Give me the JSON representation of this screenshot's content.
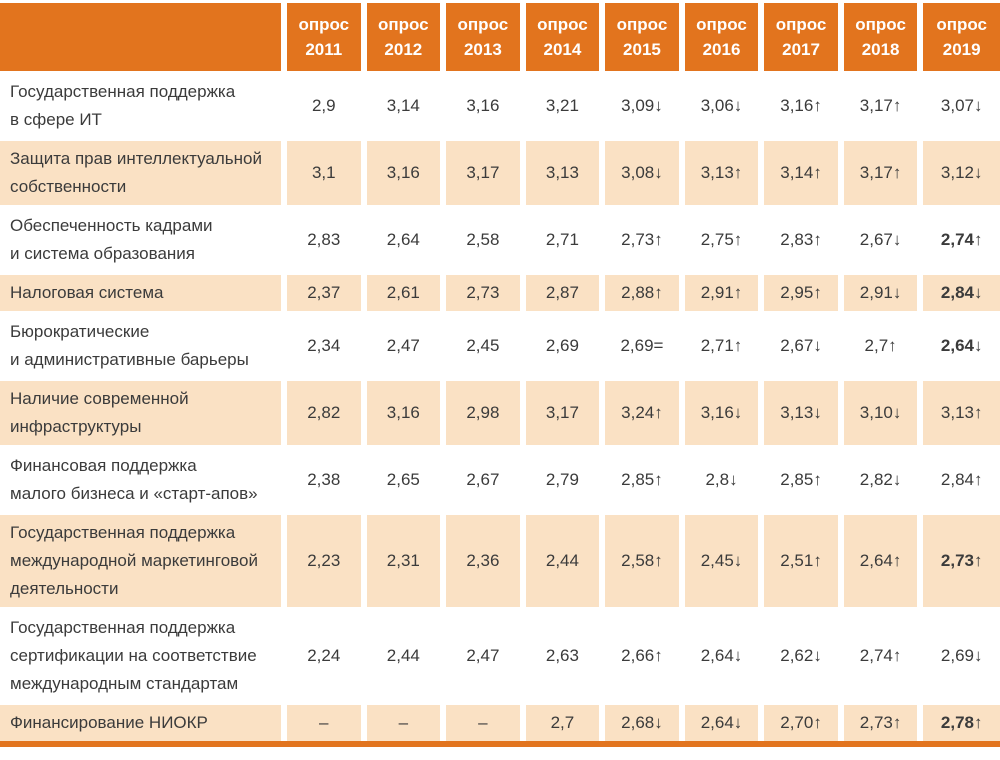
{
  "colors": {
    "header_bg": "#e2741e",
    "alt_row_bg": "#fae1c4",
    "bottom_bar": "#e2741e",
    "header_text": "#ffffff",
    "body_text": "#3b3b3b"
  },
  "table": {
    "corner_label": "",
    "columns": [
      {
        "label": "опрос",
        "year": "2011"
      },
      {
        "label": "опрос",
        "year": "2012"
      },
      {
        "label": "опрос",
        "year": "2013"
      },
      {
        "label": "опрос",
        "year": "2014"
      },
      {
        "label": "опрос",
        "year": "2015"
      },
      {
        "label": "опрос",
        "year": "2016"
      },
      {
        "label": "опрос",
        "year": "2017"
      },
      {
        "label": "опрос",
        "year": "2018"
      },
      {
        "label": "опрос",
        "year": "2019"
      }
    ],
    "rows": [
      {
        "label": "Государственная поддержка\nв сфере ИТ",
        "values": [
          "2,9",
          "3,14",
          "3,16",
          "3,21",
          "3,09↓",
          "3,06↓",
          "3,16↑",
          "3,17↑",
          "3,07↓"
        ],
        "bold_last": false
      },
      {
        "label": "Защита прав интеллектуальной\nсобственности",
        "values": [
          "3,1",
          "3,16",
          "3,17",
          "3,13",
          "3,08↓",
          "3,13↑",
          "3,14↑",
          "3,17↑",
          "3,12↓"
        ],
        "bold_last": false
      },
      {
        "label": "Обеспеченность кадрами\nи система образования",
        "values": [
          "2,83",
          "2,64",
          "2,58",
          "2,71",
          "2,73↑",
          "2,75↑",
          "2,83↑",
          "2,67↓",
          "2,74↑"
        ],
        "bold_last": true
      },
      {
        "label": "Налоговая система",
        "values": [
          "2,37",
          "2,61",
          "2,73",
          "2,87",
          "2,88↑",
          "2,91↑",
          "2,95↑",
          "2,91↓",
          "2,84↓"
        ],
        "bold_last": true
      },
      {
        "label": "Бюрократические\nи административные барьеры",
        "values": [
          "2,34",
          "2,47",
          "2,45",
          "2,69",
          "2,69=",
          "2,71↑",
          "2,67↓",
          "2,7↑",
          "2,64↓"
        ],
        "bold_last": true
      },
      {
        "label": "Наличие современной\nинфраструктуры",
        "values": [
          "2,82",
          "3,16",
          "2,98",
          "3,17",
          "3,24↑",
          "3,16↓",
          "3,13↓",
          "3,10↓",
          "3,13↑"
        ],
        "bold_last": false
      },
      {
        "label": "Финансовая поддержка\nмалого бизнеса и «старт-апов»",
        "values": [
          "2,38",
          "2,65",
          "2,67",
          "2,79",
          "2,85↑",
          "2,8↓",
          "2,85↑",
          "2,82↓",
          "2,84↑"
        ],
        "bold_last": false
      },
      {
        "label": "Государственная поддержка\nмеждународной маркетинговой\nдеятельности",
        "values": [
          "2,23",
          "2,31",
          "2,36",
          "2,44",
          "2,58↑",
          "2,45↓",
          "2,51↑",
          "2,64↑",
          "2,73↑"
        ],
        "bold_last": true
      },
      {
        "label": "Государственная поддержка\nсертификации на соответствие\nмеждународным стандартам",
        "values": [
          "2,24",
          "2,44",
          "2,47",
          "2,63",
          "2,66↑",
          "2,64↓",
          "2,62↓",
          "2,74↑",
          "2,69↓"
        ],
        "bold_last": false
      },
      {
        "label": "Финансирование НИОКР",
        "values": [
          "–",
          "–",
          "–",
          "2,7",
          "2,68↓",
          "2,64↓",
          "2,70↑",
          "2,73↑",
          "2,78↑"
        ],
        "bold_last": true
      }
    ]
  }
}
